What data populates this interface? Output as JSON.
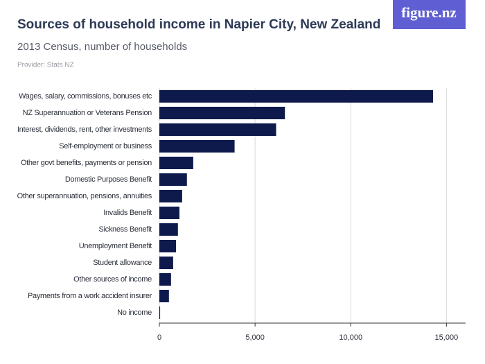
{
  "brand": "figure.nz",
  "chart_data": {
    "type": "hbar",
    "title": "Sources of household income in Napier City, New Zealand",
    "subtitle": "2013 Census, number of households",
    "provider": "Provider: Stats NZ",
    "categories": [
      "Wages, salary, commissions, bonuses etc",
      "NZ Superannuation or Veterans Pension",
      "Interest, dividends, rent, other investments",
      "Self-employment or business",
      "Other govt benefits, payments or pension",
      "Domestic Purposes Benefit",
      "Other superannuation, pensions, annuities",
      "Invalids Benefit",
      "Sickness Benefit",
      "Unemployment Benefit",
      "Student allowance",
      "Other sources of income",
      "Payments from a work accident insurer",
      "No income"
    ],
    "values": [
      14300,
      6560,
      6100,
      3930,
      1770,
      1440,
      1190,
      1050,
      970,
      870,
      720,
      610,
      500,
      40
    ],
    "color": "#0e1a4b",
    "xlim": [
      0,
      16000
    ],
    "xticks": [
      0,
      {
        "value": 5000,
        "label": "5,000"
      },
      {
        "value": 10000,
        "label": "10,000"
      },
      {
        "value": 15000,
        "label": "15,000"
      }
    ],
    "grid": true
  }
}
